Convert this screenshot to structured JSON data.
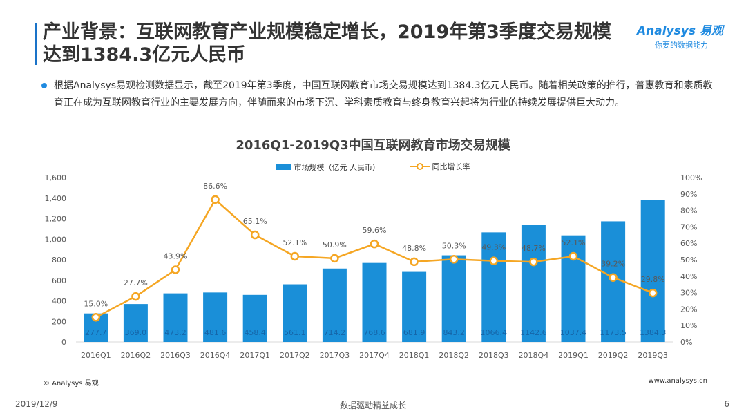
{
  "header": {
    "title": "产业背景：互联网教育产业规模稳定增长，2019年第3季度交易规模达到1384.3亿元人民币"
  },
  "logo": {
    "line1": "Analysys 易观",
    "line2": "你要的数据能力"
  },
  "body": {
    "paragraph": "根据Analysys易观检测数据显示，截至2019年第3季度，中国互联网教育市场交易规模达到1384.3亿元人民币。随着相关政策的推行，普惠教育和素质教育正在成为互联网教育行业的主要发展方向，伴随而来的市场下沉、学科素质教育与终身教育兴起将为行业的持续发展提供巨大动力。"
  },
  "chart_data": {
    "type": "bar",
    "title": "2016Q1-2019Q3中国互联网教育市场交易规模",
    "categories": [
      "2016Q1",
      "2016Q2",
      "2016Q3",
      "2016Q4",
      "2017Q1",
      "2017Q2",
      "2017Q3",
      "2017Q4",
      "2018Q1",
      "2018Q2",
      "2018Q3",
      "2018Q4",
      "2019Q1",
      "2019Q2",
      "2019Q3"
    ],
    "series": [
      {
        "name": "市场规模（亿元 人民币）",
        "type": "bar",
        "axis": "left",
        "values": [
          277.7,
          369.0,
          473.2,
          481.6,
          458.4,
          561.1,
          714.2,
          768.6,
          681.9,
          843.2,
          1066.4,
          1142.6,
          1037.4,
          1173.5,
          1384.3
        ],
        "labels": [
          "277.7",
          "369.0",
          "473.2",
          "481.6",
          "458.4",
          "561.1",
          "714.2",
          "768.6",
          "681.9",
          "843.2",
          "1066.4",
          "1142.6",
          "1037.4",
          "1173.5",
          "1384.3"
        ]
      },
      {
        "name": "同比增长率",
        "type": "line",
        "axis": "right",
        "values": [
          15.0,
          27.7,
          43.9,
          86.6,
          65.1,
          52.1,
          50.9,
          59.6,
          48.8,
          50.3,
          49.3,
          48.7,
          52.1,
          39.2,
          29.8
        ],
        "labels": [
          "15.0%",
          "27.7%",
          "43.9%",
          "86.6%",
          "65.1%",
          "52.1%",
          "50.9%",
          "59.6%",
          "48.8%",
          "50.3%",
          "49.3%",
          "48.7%",
          "52.1%",
          "39.2%",
          "29.8%"
        ]
      }
    ],
    "y_left": {
      "min": 0,
      "max": 1600,
      "ticks": [
        "0",
        "200",
        "400",
        "600",
        "800",
        "1,000",
        "1,200",
        "1,400",
        "1,600"
      ]
    },
    "y_right": {
      "min": 0,
      "max": 100,
      "ticks": [
        "0%",
        "10%",
        "20%",
        "30%",
        "40%",
        "50%",
        "60%",
        "70%",
        "80%",
        "90%",
        "100%"
      ]
    },
    "legend_position": "top",
    "grid": false,
    "colors": {
      "bar": "#1a8fd8",
      "line": "#f5a623"
    }
  },
  "source": {
    "left": "© Analysys 易观",
    "right": "www.analysys.cn"
  },
  "footer": {
    "date": "2019/12/9",
    "center": "数据驱动精益成长",
    "page": "6"
  }
}
